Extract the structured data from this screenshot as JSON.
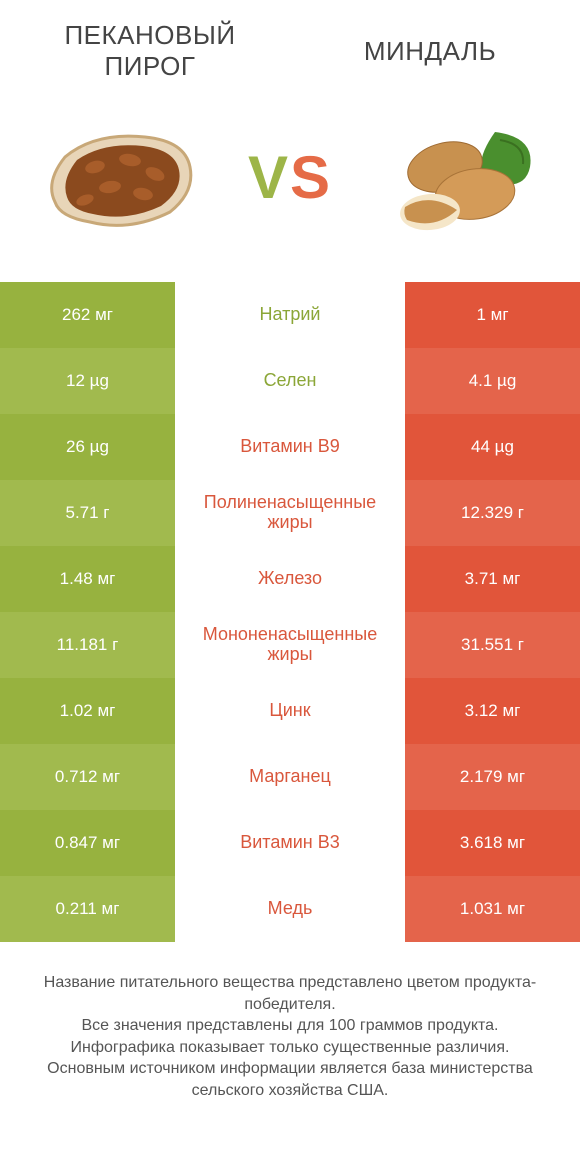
{
  "colors": {
    "green1": "#97b23f",
    "green2": "#a1ba4e",
    "red1": "#e1553a",
    "red2": "#e4644b",
    "text_green": "#8ba637",
    "text_red": "#d9573c",
    "bg": "#ffffff"
  },
  "left": {
    "title": "ПЕКАНОВЫЙ\nПИРОГ"
  },
  "right": {
    "title": "МИНДАЛЬ"
  },
  "vs": {
    "v": "V",
    "s": "S"
  },
  "rows": [
    {
      "nutrient": "Натрий",
      "left": "262 мг",
      "right": "1 мг",
      "winner": "left"
    },
    {
      "nutrient": "Селен",
      "left": "12 µg",
      "right": "4.1 µg",
      "winner": "left"
    },
    {
      "nutrient": "Витамин B9",
      "left": "26 µg",
      "right": "44 µg",
      "winner": "right"
    },
    {
      "nutrient": "Полиненасыщенные жиры",
      "left": "5.71 г",
      "right": "12.329 г",
      "winner": "right"
    },
    {
      "nutrient": "Железо",
      "left": "1.48 мг",
      "right": "3.71 мг",
      "winner": "right"
    },
    {
      "nutrient": "Мононенасыщенные жиры",
      "left": "11.181 г",
      "right": "31.551 г",
      "winner": "right"
    },
    {
      "nutrient": "Цинк",
      "left": "1.02 мг",
      "right": "3.12 мг",
      "winner": "right"
    },
    {
      "nutrient": "Марганец",
      "left": "0.712 мг",
      "right": "2.179 мг",
      "winner": "right"
    },
    {
      "nutrient": "Витамин B3",
      "left": "0.847 мг",
      "right": "3.618 мг",
      "winner": "right"
    },
    {
      "nutrient": "Медь",
      "left": "0.211 мг",
      "right": "1.031 мг",
      "winner": "right"
    }
  ],
  "footer": "Название питательного вещества представлено цветом продукта-победителя.\nВсе значения представлены для 100 граммов продукта.\nИнфографика показывает только существенные различия.\nОсновным источником информации является база министерства сельского хозяйства США."
}
